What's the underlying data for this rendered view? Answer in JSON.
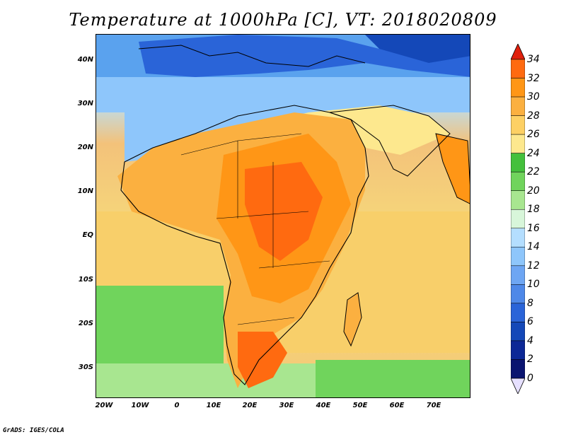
{
  "title": "Temperature at 1000hPa [C], VT: 2018020809",
  "credit": "GrADS: IGES/COLA",
  "map": {
    "lat_labels": [
      "40N",
      "30N",
      "20N",
      "10N",
      "EQ",
      "10S",
      "20S",
      "30S"
    ],
    "lon_labels": [
      "20W",
      "10W",
      "0",
      "10E",
      "20E",
      "30E",
      "40E",
      "50E",
      "60E",
      "70E"
    ]
  },
  "colorbar": {
    "labels": [
      "34",
      "32",
      "30",
      "28",
      "26",
      "24",
      "22",
      "20",
      "18",
      "16",
      "14",
      "12",
      "10",
      "8",
      "6",
      "4",
      "2",
      "0"
    ],
    "colors": [
      "#ff3f10",
      "#ff6a10",
      "#ff9616",
      "#fbb040",
      "#fdd064",
      "#fde88e",
      "#44c03c",
      "#70d45c",
      "#a8e690",
      "#d8f6da",
      "#b4deff",
      "#8ec6fb",
      "#6ea6f3",
      "#4e88e8",
      "#2a64d8",
      "#1448b8",
      "#0c2896",
      "#0a1470"
    ],
    "top_color": "#e0200c",
    "bottom_color": "#e6e0ff"
  }
}
